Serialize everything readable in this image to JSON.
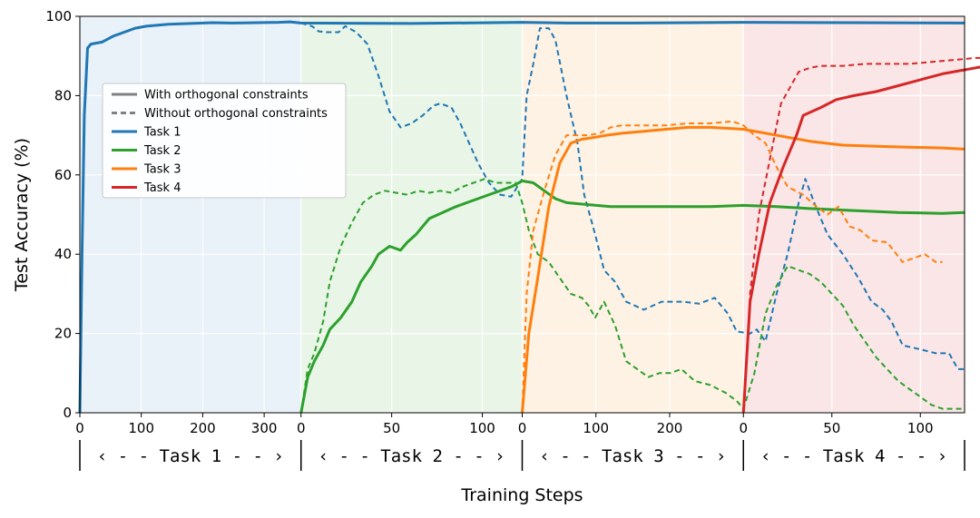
{
  "chart_data": {
    "type": "line",
    "xlabel": "Training Steps",
    "ylabel": "Test Accuracy (%)",
    "ylim": [
      0,
      100
    ],
    "yticks": [
      0,
      20,
      40,
      60,
      80,
      100
    ],
    "grid": true,
    "legend_position": "center-left",
    "legend": [
      {
        "label": "With orthogonal constraints",
        "color": "#808080",
        "style": "solid"
      },
      {
        "label": "Without orthogonal constraints",
        "color": "#808080",
        "style": "dashed"
      },
      {
        "label": "Task 1",
        "color": "#1f77b4",
        "style": "solid"
      },
      {
        "label": "Task 2",
        "color": "#2ca02c",
        "style": "solid"
      },
      {
        "label": "Task 3",
        "color": "#ff7f0e",
        "style": "solid"
      },
      {
        "label": "Task 4",
        "color": "#d62728",
        "style": "solid"
      }
    ],
    "phases": [
      {
        "name": "Task 1",
        "label": "‹  - -   Task 1   - - ›",
        "shade": "#e9f1f9",
        "tick_max": 360,
        "ticks": [
          0,
          100,
          200,
          300
        ]
      },
      {
        "name": "Task 2",
        "label": "‹  - -   Task 2   - - ›",
        "shade": "#e9f5e7",
        "tick_max": 122,
        "ticks": [
          0,
          50,
          100
        ]
      },
      {
        "name": "Task 3",
        "label": "‹  - -   Task 3   - - ›",
        "shade": "#fef2e4",
        "tick_max": 300,
        "ticks": [
          0,
          100,
          200
        ]
      },
      {
        "name": "Task 4",
        "label": "‹  - -   Task 4   - - ›",
        "shade": "#fae6e6",
        "tick_max": 125,
        "ticks": [
          0,
          50,
          100
        ]
      }
    ],
    "series": [
      {
        "name": "Task 1",
        "constraint": "with",
        "color": "#1f77b4",
        "start_phase": 0,
        "points": [
          [
            0,
            0
          ],
          [
            0.01,
            40
          ],
          [
            0.02,
            75
          ],
          [
            0.035,
            92
          ],
          [
            0.05,
            93
          ],
          [
            0.1,
            93.5
          ],
          [
            0.15,
            95
          ],
          [
            0.2,
            96
          ],
          [
            0.25,
            97
          ],
          [
            0.3,
            97.5
          ],
          [
            0.4,
            98
          ],
          [
            0.5,
            98.2
          ],
          [
            0.6,
            98.4
          ],
          [
            0.7,
            98.3
          ],
          [
            0.8,
            98.4
          ],
          [
            0.9,
            98.5
          ],
          [
            0.95,
            98.6
          ],
          [
            1,
            98.3
          ],
          [
            1.5,
            98.2
          ],
          [
            2,
            98.5
          ],
          [
            2.2,
            98.3
          ],
          [
            2.5,
            98.3
          ],
          [
            3,
            98.5
          ],
          [
            3.5,
            98.4
          ],
          [
            4,
            98.3
          ]
        ]
      },
      {
        "name": "Task 1",
        "constraint": "without",
        "color": "#1f77b4",
        "start_phase": 1,
        "points": [
          [
            0,
            98.3
          ],
          [
            0.05,
            97.5
          ],
          [
            0.08,
            96.2
          ],
          [
            0.12,
            96
          ],
          [
            0.17,
            96
          ],
          [
            0.2,
            97.5
          ],
          [
            0.25,
            96
          ],
          [
            0.3,
            93
          ],
          [
            0.35,
            85
          ],
          [
            0.4,
            76
          ],
          [
            0.45,
            72
          ],
          [
            0.5,
            73
          ],
          [
            0.55,
            75
          ],
          [
            0.6,
            77.5
          ],
          [
            0.63,
            78
          ],
          [
            0.68,
            77
          ],
          [
            0.72,
            73
          ],
          [
            0.76,
            68
          ],
          [
            0.8,
            63
          ],
          [
            0.85,
            58
          ],
          [
            0.9,
            55
          ],
          [
            0.95,
            54.5
          ],
          [
            1,
            59
          ],
          [
            1.02,
            80
          ],
          [
            1.05,
            88
          ],
          [
            1.08,
            97
          ],
          [
            1.12,
            97
          ],
          [
            1.15,
            94
          ],
          [
            1.2,
            80
          ],
          [
            1.25,
            68
          ],
          [
            1.28,
            55
          ],
          [
            1.33,
            45
          ],
          [
            1.37,
            36
          ],
          [
            1.42,
            33
          ],
          [
            1.47,
            28
          ],
          [
            1.55,
            26
          ],
          [
            1.63,
            28
          ],
          [
            1.73,
            28
          ],
          [
            1.8,
            27.5
          ],
          [
            1.87,
            29
          ],
          [
            1.93,
            25
          ],
          [
            1.97,
            20.5
          ],
          [
            2.03,
            20
          ],
          [
            2.06,
            21
          ],
          [
            2.1,
            18
          ],
          [
            2.15,
            30
          ],
          [
            2.2,
            40
          ],
          [
            2.25,
            53
          ],
          [
            2.28,
            59
          ],
          [
            2.32,
            53
          ],
          [
            2.38,
            45
          ],
          [
            2.45,
            40
          ],
          [
            2.52,
            34
          ],
          [
            2.58,
            28
          ],
          [
            2.63,
            26
          ],
          [
            2.67,
            23
          ],
          [
            2.72,
            17
          ],
          [
            2.8,
            16
          ],
          [
            2.87,
            15
          ],
          [
            2.93,
            15
          ],
          [
            2.97,
            11
          ],
          [
            3,
            11
          ]
        ]
      },
      {
        "name": "Task 2",
        "constraint": "with",
        "color": "#2ca02c",
        "start_phase": 1,
        "points": [
          [
            0,
            0
          ],
          [
            0.03,
            9
          ],
          [
            0.06,
            13
          ],
          [
            0.1,
            17
          ],
          [
            0.13,
            21
          ],
          [
            0.18,
            24
          ],
          [
            0.23,
            28
          ],
          [
            0.27,
            33
          ],
          [
            0.32,
            37
          ],
          [
            0.35,
            40
          ],
          [
            0.4,
            42
          ],
          [
            0.45,
            41
          ],
          [
            0.48,
            43
          ],
          [
            0.52,
            45
          ],
          [
            0.55,
            47
          ],
          [
            0.58,
            49
          ],
          [
            0.62,
            50
          ],
          [
            0.66,
            51
          ],
          [
            0.7,
            52
          ],
          [
            0.75,
            53
          ],
          [
            0.8,
            54
          ],
          [
            0.85,
            55
          ],
          [
            0.9,
            56
          ],
          [
            0.95,
            57
          ],
          [
            1,
            58.5
          ],
          [
            1.05,
            58
          ],
          [
            1.1,
            56
          ],
          [
            1.15,
            54
          ],
          [
            1.2,
            53
          ],
          [
            1.3,
            52.5
          ],
          [
            1.4,
            52
          ],
          [
            1.55,
            52
          ],
          [
            1.7,
            52
          ],
          [
            1.85,
            52
          ],
          [
            2,
            52.3
          ],
          [
            2.15,
            52
          ],
          [
            2.3,
            51.5
          ],
          [
            2.5,
            51
          ],
          [
            2.7,
            50.5
          ],
          [
            2.9,
            50.3
          ],
          [
            3,
            50.5
          ]
        ]
      },
      {
        "name": "Task 2",
        "constraint": "without",
        "color": "#2ca02c",
        "start_phase": 1,
        "points": [
          [
            0,
            0
          ],
          [
            0.03,
            11
          ],
          [
            0.06,
            15
          ],
          [
            0.1,
            23
          ],
          [
            0.13,
            33
          ],
          [
            0.18,
            42
          ],
          [
            0.23,
            48
          ],
          [
            0.28,
            53
          ],
          [
            0.33,
            55
          ],
          [
            0.38,
            56
          ],
          [
            0.43,
            55.5
          ],
          [
            0.48,
            55
          ],
          [
            0.53,
            56
          ],
          [
            0.58,
            55.5
          ],
          [
            0.63,
            56
          ],
          [
            0.68,
            55.5
          ],
          [
            0.73,
            57
          ],
          [
            0.78,
            58
          ],
          [
            0.83,
            59
          ],
          [
            0.88,
            58
          ],
          [
            0.93,
            58
          ],
          [
            0.97,
            58
          ],
          [
            1,
            53
          ],
          [
            1.03,
            46
          ],
          [
            1.07,
            40
          ],
          [
            1.12,
            38
          ],
          [
            1.17,
            34
          ],
          [
            1.22,
            30
          ],
          [
            1.27,
            29
          ],
          [
            1.3,
            27
          ],
          [
            1.33,
            24
          ],
          [
            1.37,
            28
          ],
          [
            1.42,
            22
          ],
          [
            1.47,
            13
          ],
          [
            1.52,
            11
          ],
          [
            1.57,
            9
          ],
          [
            1.62,
            10
          ],
          [
            1.67,
            10
          ],
          [
            1.72,
            11
          ],
          [
            1.78,
            8
          ],
          [
            1.85,
            7
          ],
          [
            1.92,
            5
          ],
          [
            1.97,
            3
          ],
          [
            2,
            1
          ],
          [
            2.05,
            10
          ],
          [
            2.1,
            25
          ],
          [
            2.15,
            32
          ],
          [
            2.2,
            37
          ],
          [
            2.25,
            36
          ],
          [
            2.3,
            35
          ],
          [
            2.35,
            33
          ],
          [
            2.4,
            30
          ],
          [
            2.45,
            27
          ],
          [
            2.5,
            22
          ],
          [
            2.55,
            18
          ],
          [
            2.6,
            14
          ],
          [
            2.65,
            11
          ],
          [
            2.7,
            8
          ],
          [
            2.75,
            6
          ],
          [
            2.8,
            4
          ],
          [
            2.85,
            2
          ],
          [
            2.9,
            1
          ],
          [
            3,
            1
          ]
        ]
      },
      {
        "name": "Task 3",
        "constraint": "with",
        "color": "#ff7f0e",
        "start_phase": 2,
        "points": [
          [
            0,
            0
          ],
          [
            0.03,
            20
          ],
          [
            0.07,
            34
          ],
          [
            0.12,
            52
          ],
          [
            0.17,
            63
          ],
          [
            0.22,
            68
          ],
          [
            0.27,
            69
          ],
          [
            0.33,
            69.5
          ],
          [
            0.38,
            70
          ],
          [
            0.45,
            70.5
          ],
          [
            0.55,
            71
          ],
          [
            0.65,
            71.5
          ],
          [
            0.75,
            72
          ],
          [
            0.85,
            72
          ],
          [
            0.95,
            71.7
          ],
          [
            1,
            71.5
          ],
          [
            1.1,
            70.5
          ],
          [
            1.2,
            69.5
          ],
          [
            1.3,
            68.5
          ],
          [
            1.45,
            67.5
          ],
          [
            1.6,
            67.2
          ],
          [
            1.75,
            67
          ],
          [
            1.9,
            66.8
          ],
          [
            2,
            66.5
          ]
        ]
      },
      {
        "name": "Task 3",
        "constraint": "without",
        "color": "#ff7f0e",
        "start_phase": 2,
        "points": [
          [
            0,
            0
          ],
          [
            0.02,
            30
          ],
          [
            0.05,
            46
          ],
          [
            0.1,
            56
          ],
          [
            0.15,
            65
          ],
          [
            0.2,
            70
          ],
          [
            0.25,
            70
          ],
          [
            0.3,
            70
          ],
          [
            0.35,
            70.5
          ],
          [
            0.4,
            72
          ],
          [
            0.45,
            72.5
          ],
          [
            0.55,
            72.5
          ],
          [
            0.65,
            72.5
          ],
          [
            0.75,
            73
          ],
          [
            0.85,
            73
          ],
          [
            0.95,
            73.5
          ],
          [
            1,
            72.5
          ],
          [
            1.05,
            70
          ],
          [
            1.1,
            68
          ],
          [
            1.15,
            62
          ],
          [
            1.2,
            57
          ],
          [
            1.27,
            55
          ],
          [
            1.33,
            52
          ],
          [
            1.38,
            50
          ],
          [
            1.43,
            52
          ],
          [
            1.48,
            47
          ],
          [
            1.53,
            46
          ],
          [
            1.58,
            43.5
          ],
          [
            1.65,
            43
          ],
          [
            1.72,
            38
          ],
          [
            1.77,
            39
          ],
          [
            1.82,
            40
          ],
          [
            1.87,
            38
          ],
          [
            1.9,
            38
          ]
        ]
      },
      {
        "name": "Task 4",
        "constraint": "with",
        "color": "#d62728",
        "start_phase": 3,
        "points": [
          [
            0,
            0
          ],
          [
            0.03,
            28
          ],
          [
            0.07,
            40
          ],
          [
            0.12,
            53
          ],
          [
            0.18,
            62
          ],
          [
            0.24,
            70
          ],
          [
            0.27,
            75
          ],
          [
            0.35,
            77
          ],
          [
            0.42,
            79
          ],
          [
            0.5,
            80
          ],
          [
            0.6,
            81
          ],
          [
            0.7,
            82.5
          ],
          [
            0.8,
            84
          ],
          [
            0.9,
            85.5
          ],
          [
            1,
            86.5
          ],
          [
            1.05,
            87
          ],
          [
            1.1,
            87.5
          ],
          [
            1.15,
            88
          ],
          [
            1.2,
            88
          ],
          [
            1.23,
            88.5
          ],
          [
            1.25,
            89.5
          ]
        ]
      },
      {
        "name": "Task 4",
        "constraint": "without",
        "color": "#d62728",
        "start_phase": 3,
        "points": [
          [
            0,
            0
          ],
          [
            0.03,
            30
          ],
          [
            0.07,
            50
          ],
          [
            0.12,
            64
          ],
          [
            0.17,
            78
          ],
          [
            0.2,
            81
          ],
          [
            0.25,
            86
          ],
          [
            0.3,
            87
          ],
          [
            0.35,
            87.5
          ],
          [
            0.45,
            87.5
          ],
          [
            0.55,
            88
          ],
          [
            0.65,
            88
          ],
          [
            0.75,
            88
          ],
          [
            0.85,
            88.5
          ],
          [
            0.95,
            89
          ],
          [
            1.05,
            89.5
          ],
          [
            1.15,
            89.5
          ],
          [
            1.25,
            90
          ]
        ]
      }
    ]
  }
}
